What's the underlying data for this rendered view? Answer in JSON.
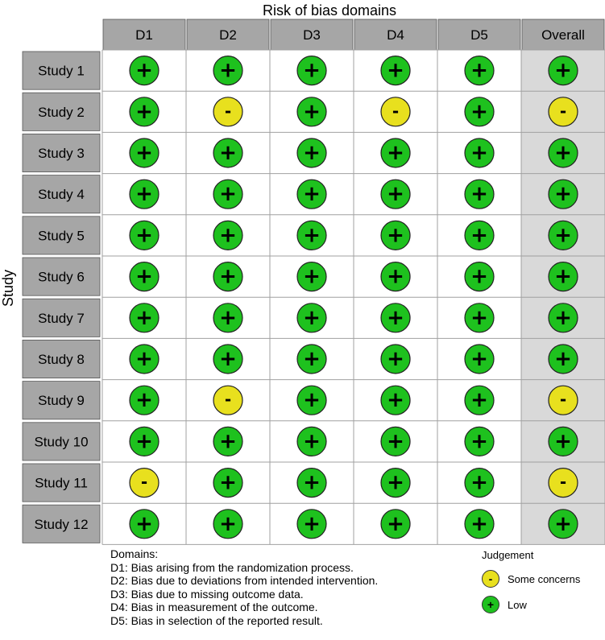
{
  "chart_data": {
    "type": "table",
    "title": "Risk of bias domains",
    "ylabel": "Study",
    "columns": [
      "D1",
      "D2",
      "D3",
      "D4",
      "D5",
      "Overall"
    ],
    "rows": [
      {
        "study": "Study 1",
        "judgements": [
          "+",
          "+",
          "+",
          "+",
          "+",
          "+"
        ]
      },
      {
        "study": "Study 2",
        "judgements": [
          "+",
          "-",
          "+",
          "-",
          "+",
          "-"
        ]
      },
      {
        "study": "Study 3",
        "judgements": [
          "+",
          "+",
          "+",
          "+",
          "+",
          "+"
        ]
      },
      {
        "study": "Study 4",
        "judgements": [
          "+",
          "+",
          "+",
          "+",
          "+",
          "+"
        ]
      },
      {
        "study": "Study 5",
        "judgements": [
          "+",
          "+",
          "+",
          "+",
          "+",
          "+"
        ]
      },
      {
        "study": "Study 6",
        "judgements": [
          "+",
          "+",
          "+",
          "+",
          "+",
          "+"
        ]
      },
      {
        "study": "Study 7",
        "judgements": [
          "+",
          "+",
          "+",
          "+",
          "+",
          "+"
        ]
      },
      {
        "study": "Study 8",
        "judgements": [
          "+",
          "+",
          "+",
          "+",
          "+",
          "+"
        ]
      },
      {
        "study": "Study 9",
        "judgements": [
          "+",
          "-",
          "+",
          "+",
          "+",
          "-"
        ]
      },
      {
        "study": "Study 10",
        "judgements": [
          "+",
          "+",
          "+",
          "+",
          "+",
          "+"
        ]
      },
      {
        "study": "Study 11",
        "judgements": [
          "-",
          "+",
          "+",
          "+",
          "+",
          "-"
        ]
      },
      {
        "study": "Study 12",
        "judgements": [
          "+",
          "+",
          "+",
          "+",
          "+",
          "+"
        ]
      }
    ],
    "judgement_levels": {
      "+": {
        "label": "Low",
        "color": "#1ec11e"
      },
      "-": {
        "label": "Some concerns",
        "color": "#e8e01e"
      }
    }
  },
  "legend": {
    "domains_title": "Domains:",
    "domains": [
      "D1: Bias arising from the randomization process.",
      "D2: Bias due to deviations from intended intervention.",
      "D3: Bias due to missing outcome data.",
      "D4: Bias in measurement of the outcome.",
      "D5: Bias in selection of the reported result."
    ],
    "judgement_title": "Judgement",
    "judgement_items": [
      {
        "symbol": "-",
        "label": "Some concerns",
        "color": "#e8e01e"
      },
      {
        "symbol": "+",
        "label": "Low",
        "color": "#1ec11e"
      }
    ]
  },
  "colors": {
    "header_fill": "#a6a6a6",
    "overall_fill": "#d9d9d9",
    "cell_border": "#a0a0a0"
  }
}
